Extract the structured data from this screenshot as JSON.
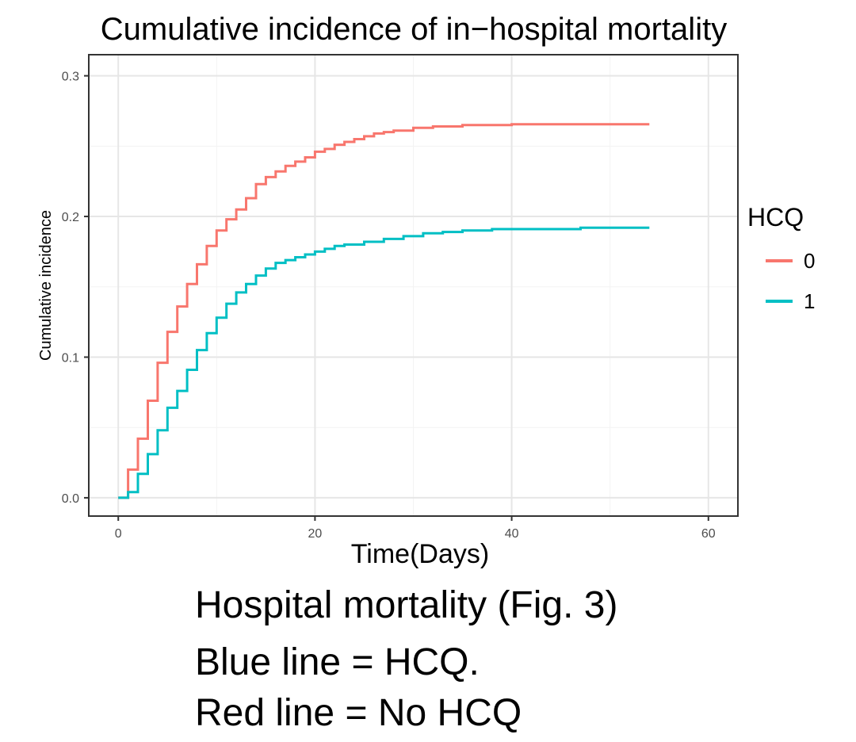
{
  "chart_data": {
    "type": "line",
    "step": true,
    "title": "Cumulative incidence of in−hospital mortality",
    "xlabel": "Time(Days)",
    "ylabel": "Cumulative incidence",
    "xlim": [
      -3,
      63
    ],
    "ylim": [
      -0.013,
      0.315
    ],
    "xticks": [
      0,
      20,
      40,
      60
    ],
    "xtick_labels": [
      "0",
      "20",
      "40",
      "60"
    ],
    "yticks": [
      0.0,
      0.1,
      0.2,
      0.3
    ],
    "ytick_labels": [
      "0.0",
      "0.1",
      "0.2",
      "0.3"
    ],
    "grid": true,
    "legend": {
      "title": "HCQ",
      "position": "right"
    },
    "series": [
      {
        "name": "0",
        "color": "#F8766D",
        "x": [
          0,
          1,
          2,
          3,
          4,
          5,
          6,
          7,
          8,
          9,
          10,
          11,
          12,
          13,
          14,
          15,
          16,
          17,
          18,
          19,
          20,
          21,
          22,
          23,
          24,
          25,
          26,
          27,
          28,
          30,
          32,
          35,
          40,
          45,
          54
        ],
        "y": [
          0,
          0.02,
          0.042,
          0.069,
          0.096,
          0.118,
          0.136,
          0.152,
          0.166,
          0.179,
          0.19,
          0.198,
          0.205,
          0.213,
          0.223,
          0.228,
          0.232,
          0.236,
          0.239,
          0.242,
          0.246,
          0.248,
          0.251,
          0.253,
          0.255,
          0.257,
          0.259,
          0.26,
          0.261,
          0.263,
          0.264,
          0.265,
          0.2655,
          0.2655,
          0.2655
        ]
      },
      {
        "name": "1",
        "color": "#00BFC4",
        "x": [
          0,
          1,
          2,
          3,
          4,
          5,
          6,
          7,
          8,
          9,
          10,
          11,
          12,
          13,
          14,
          15,
          16,
          17,
          18,
          19,
          20,
          21,
          22,
          23,
          25,
          27,
          29,
          31,
          33,
          35,
          38,
          42,
          47,
          54
        ],
        "y": [
          0,
          0.004,
          0.017,
          0.031,
          0.048,
          0.064,
          0.076,
          0.091,
          0.105,
          0.117,
          0.128,
          0.138,
          0.146,
          0.152,
          0.158,
          0.163,
          0.167,
          0.169,
          0.171,
          0.173,
          0.175,
          0.177,
          0.179,
          0.18,
          0.182,
          0.184,
          0.186,
          0.188,
          0.189,
          0.19,
          0.191,
          0.191,
          0.192,
          0.192
        ]
      }
    ]
  },
  "caption": {
    "line1": "Hospital mortality (Fig. 3)",
    "line2": "Blue line = HCQ.",
    "line3": "Red line = No HCQ"
  }
}
